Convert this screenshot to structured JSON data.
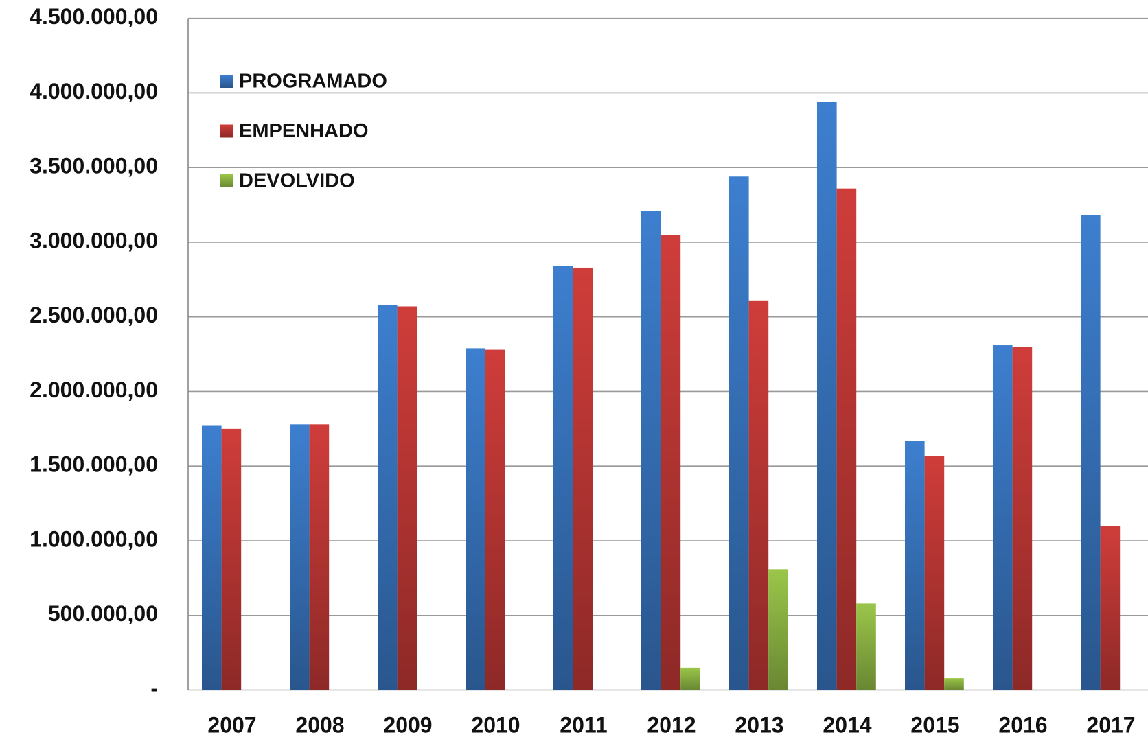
{
  "chart_data": {
    "type": "bar",
    "categories": [
      "2007",
      "2008",
      "2009",
      "2010",
      "2011",
      "2012",
      "2013",
      "2014",
      "2015",
      "2016",
      "2017"
    ],
    "series": [
      {
        "name": "PROGRAMADO",
        "color": "#3d7fcf",
        "values": [
          1770000,
          1780000,
          2580000,
          2290000,
          2840000,
          3210000,
          3440000,
          3940000,
          1670000,
          2310000,
          3180000
        ]
      },
      {
        "name": "EMPENHADO",
        "color": "#cf3d3a",
        "values": [
          1750000,
          1780000,
          2570000,
          2280000,
          2830000,
          3050000,
          2610000,
          3360000,
          1570000,
          2300000,
          1100000
        ]
      },
      {
        "name": "DEVOLVIDO",
        "color": "#9bc64a",
        "values": [
          0,
          0,
          0,
          0,
          0,
          150000,
          810000,
          580000,
          80000,
          0,
          0
        ]
      }
    ],
    "ylim": [
      0,
      4500000
    ],
    "yticks": [
      {
        "value": 0,
        "label": "-"
      },
      {
        "value": 500000,
        "label": "500.000,00"
      },
      {
        "value": 1000000,
        "label": "1.000.000,00"
      },
      {
        "value": 1500000,
        "label": "1.500.000,00"
      },
      {
        "value": 2000000,
        "label": "2.000.000,00"
      },
      {
        "value": 2500000,
        "label": "2.500.000,00"
      },
      {
        "value": 3000000,
        "label": "3.000.000,00"
      },
      {
        "value": 3500000,
        "label": "3.500.000,00"
      },
      {
        "value": 4000000,
        "label": "4.000.000,00"
      },
      {
        "value": 4500000,
        "label": "4.500.000,00"
      }
    ],
    "grid": true
  }
}
